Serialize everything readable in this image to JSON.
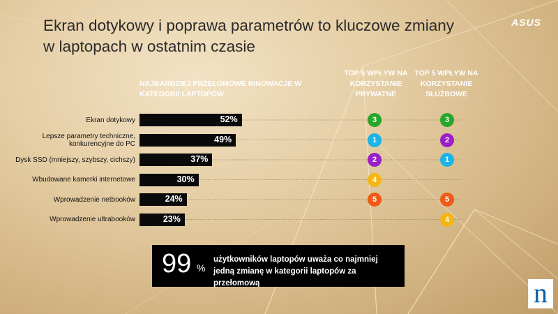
{
  "title": "Ekran dotykowy i poprawa parametrów to kluczowe zmiany w laptopach w ostatnim czasie",
  "brand_logo": "ASUS",
  "corner_logo": "n",
  "headers": {
    "main": "NAJBARDZIEJ PRZEŁOMOWE INNOWACJE W KATEGORII LAPTOPÓW",
    "private": "TOP 5 WPŁYW NA KORZYSTANIE PRYWATNE",
    "business": "TOP 5 WPŁYW NA KORZYSTANIE SŁUŻBOWE"
  },
  "rank_colors": {
    "1": "#1ab4e8",
    "2": "#9b1fc9",
    "3": "#27a62a",
    "4": "#f3b614",
    "5": "#ef5a18"
  },
  "chart_data": {
    "type": "bar",
    "orientation": "horizontal",
    "categories": [
      "Ekran dotykowy",
      "Lepsze parametry techniczne, konkurencyjne do PC",
      "Dysk SSD (mniejszy, szybszy, cichszy)",
      "Wbudowane kamerki internetowe",
      "Wprowadzenie netbooków",
      "Wprowadzenie ultrabooków"
    ],
    "values": [
      52,
      49,
      37,
      30,
      24,
      23
    ],
    "value_labels": [
      "52%",
      "49%",
      "37%",
      "30%",
      "24%",
      "23%"
    ],
    "xlim": [
      0,
      100
    ],
    "rank_private": [
      3,
      1,
      2,
      4,
      5,
      null
    ],
    "rank_business": [
      3,
      2,
      1,
      null,
      5,
      4
    ]
  },
  "callout": {
    "number": "99",
    "percent_sign": "%",
    "text": "użytkowników laptopów uważa co najmniej jedną zmianę w kategorii laptopów za przełomową"
  }
}
